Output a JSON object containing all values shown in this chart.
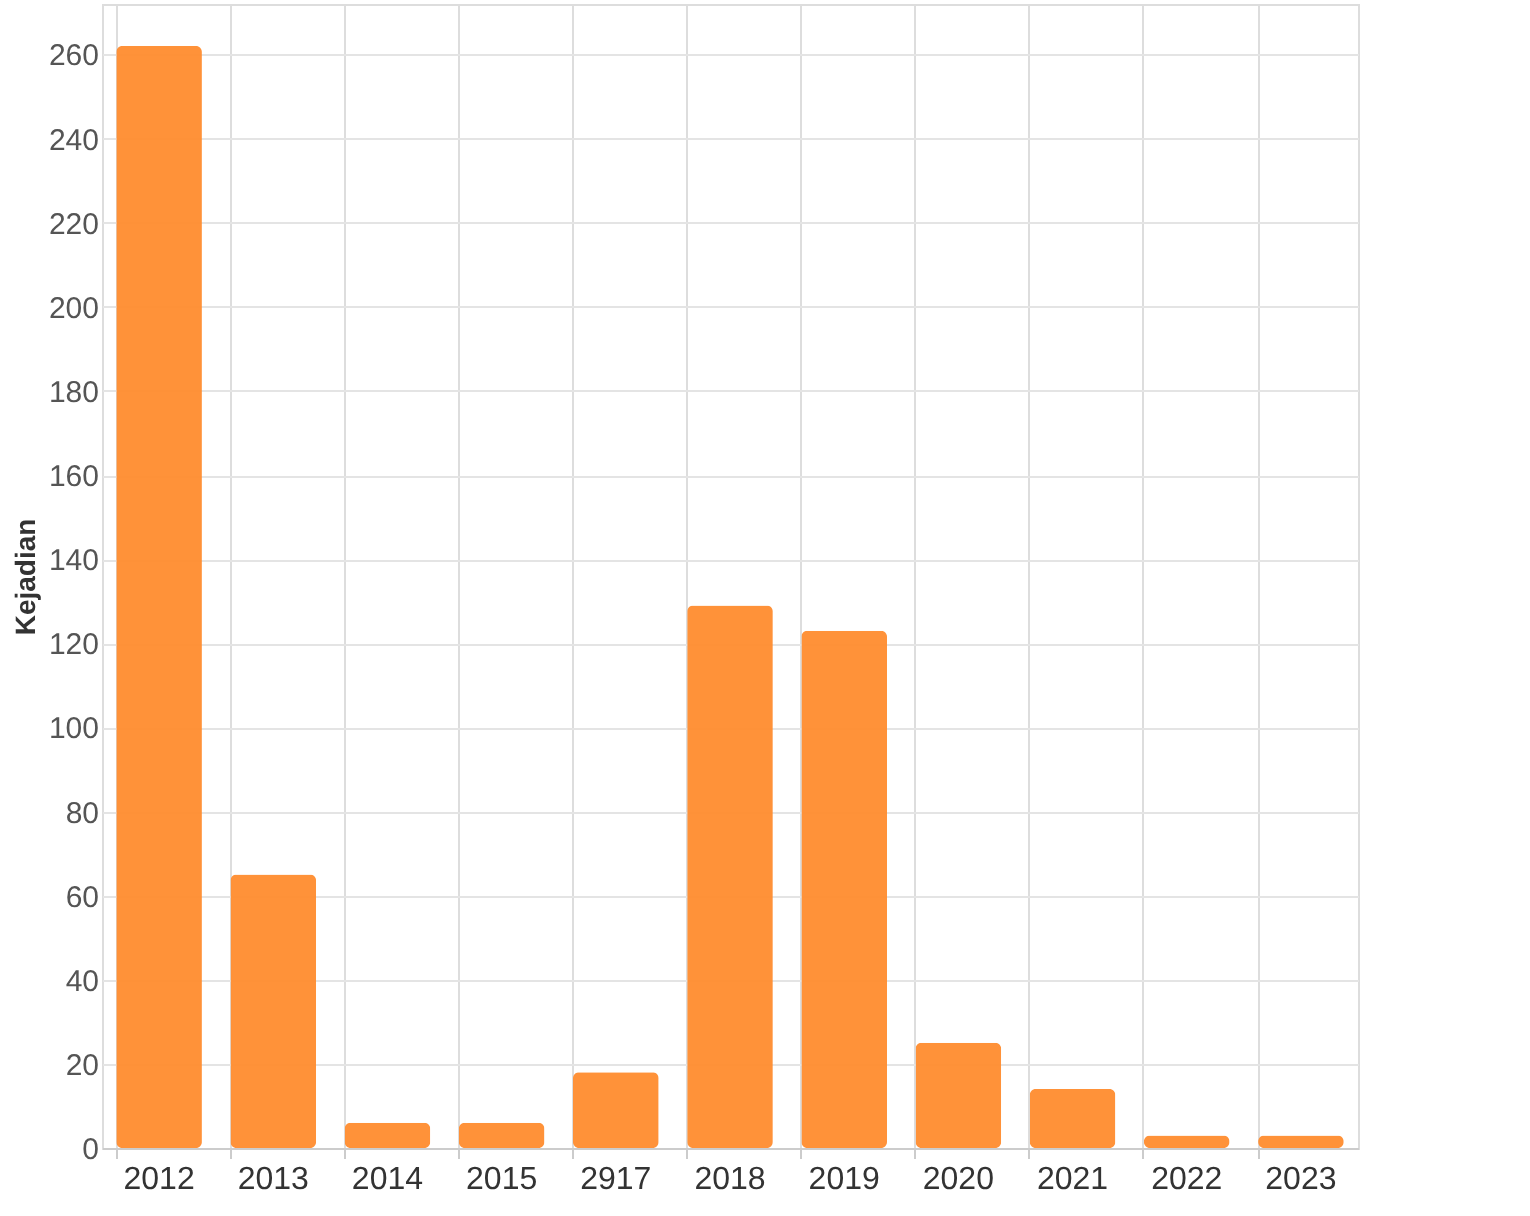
{
  "chart_data": {
    "type": "bar",
    "ylabel": "Kejadian",
    "categories": [
      "2012",
      "2013",
      "2014",
      "2015",
      "2917",
      "2018",
      "2019",
      "2020",
      "2021",
      "2022",
      "2023"
    ],
    "values": [
      262,
      65,
      6,
      6,
      18,
      129,
      123,
      25,
      14,
      3,
      3
    ],
    "color": "#ff8c2e",
    "ylim": [
      0,
      272
    ],
    "yticks": [
      0,
      20,
      40,
      60,
      80,
      100,
      120,
      140,
      160,
      180,
      200,
      220,
      240,
      260
    ],
    "grid": true
  }
}
